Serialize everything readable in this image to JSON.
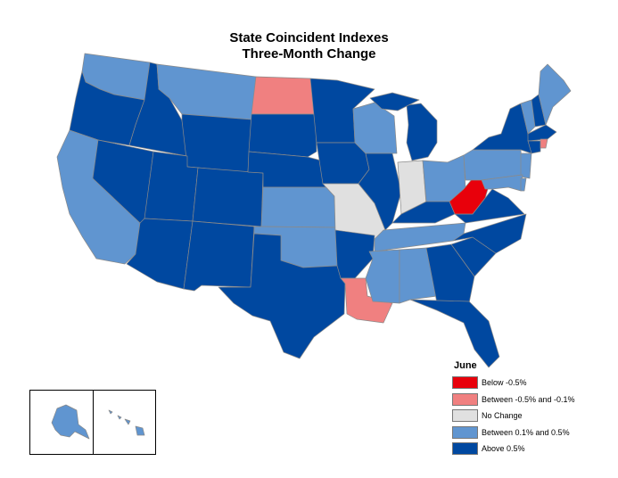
{
  "title": {
    "line1": "State Coincident Indexes",
    "line2": "Three-Month Change"
  },
  "legend": {
    "title": "June",
    "items": [
      {
        "label": "Below -0.5%",
        "color": "#e8000b"
      },
      {
        "label": "Between -0.5% and -0.1%",
        "color": "#f08080"
      },
      {
        "label": "No Change",
        "color": "#e0e0e0"
      },
      {
        "label": "Between 0.1% and 0.5%",
        "color": "#6095d0"
      },
      {
        "label": "Above 0.5%",
        "color": "#0048a0"
      }
    ]
  },
  "states": {
    "WA": "between_0.1_0.5",
    "OR": "above_0.5",
    "CA": "between_0.1_0.5",
    "ID": "above_0.5",
    "NV": "above_0.5",
    "MT": "between_0.1_0.5",
    "WY": "above_0.5",
    "UT": "above_0.5",
    "AZ": "above_0.5",
    "CO": "above_0.5",
    "NM": "above_0.5",
    "ND": "between_-0.5_-0.1",
    "SD": "above_0.5",
    "NE": "above_0.5",
    "KS": "between_0.1_0.5",
    "OK": "between_0.1_0.5",
    "TX": "above_0.5",
    "MN": "above_0.5",
    "IA": "above_0.5",
    "MO": "no_change",
    "AR": "above_0.5",
    "LA": "between_-0.5_-0.1",
    "WI": "between_0.1_0.5",
    "IL": "above_0.5",
    "MI": "above_0.5",
    "IN": "no_change",
    "OH": "between_0.1_0.5",
    "KY": "above_0.5",
    "TN": "between_0.1_0.5",
    "MS": "between_0.1_0.5",
    "AL": "between_0.1_0.5",
    "GA": "above_0.5",
    "FL": "above_0.5",
    "SC": "above_0.5",
    "NC": "above_0.5",
    "VA": "above_0.5",
    "WV": "below_-0.5",
    "PA": "between_0.1_0.5",
    "NY": "above_0.5",
    "VT": "between_0.1_0.5",
    "NH": "above_0.5",
    "ME": "between_0.1_0.5",
    "MA": "above_0.5",
    "RI": "between_-0.5_-0.1",
    "CT": "above_0.5",
    "NJ": "between_0.1_0.5",
    "DE": "between_0.1_0.5",
    "MD": "between_0.1_0.5",
    "AK": "between_0.1_0.5",
    "HI": "between_0.1_0.5"
  },
  "category_colors": {
    "below_-0.5": "#e8000b",
    "between_-0.5_-0.1": "#f08080",
    "no_change": "#e0e0e0",
    "between_0.1_0.5": "#6095d0",
    "above_0.5": "#0048a0"
  }
}
